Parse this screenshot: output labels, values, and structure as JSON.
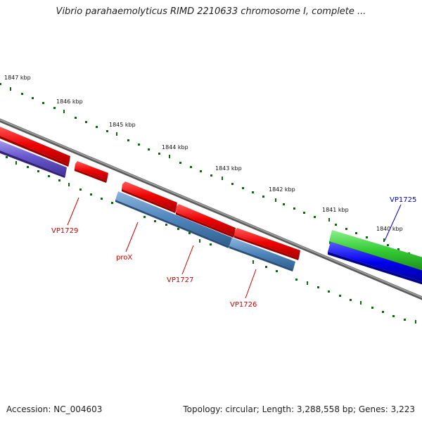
{
  "title": "Vibrio parahaemolyticus RIMD 2210633 chromosome I, complete ...",
  "footer": {
    "accession": "Accession: NC_004603",
    "stats": "Topology: circular; Length: 3,288,558 bp; Genes: 3,223"
  },
  "kbp_labels": [
    "1847 kbp",
    "1846 kbp",
    "1845 kbp",
    "1844 kbp",
    "1843 kbp",
    "1842 kbp",
    "1841 kbp",
    "1840 kbp"
  ],
  "gene_labels": [
    "VP1729",
    "proX",
    "VP1727",
    "VP1726",
    "VP1725"
  ],
  "colors": {
    "reverse_cds": "#ee0000",
    "reverse_gene": "#4f86bd",
    "forward_cds": "#33cc33",
    "forward_gene": "#0000ee",
    "purple_gene": "#6655cc",
    "backbone": "#888888",
    "ticks": "#116611",
    "label_red": "#cc0000",
    "label_blue": "#0000cc"
  }
}
